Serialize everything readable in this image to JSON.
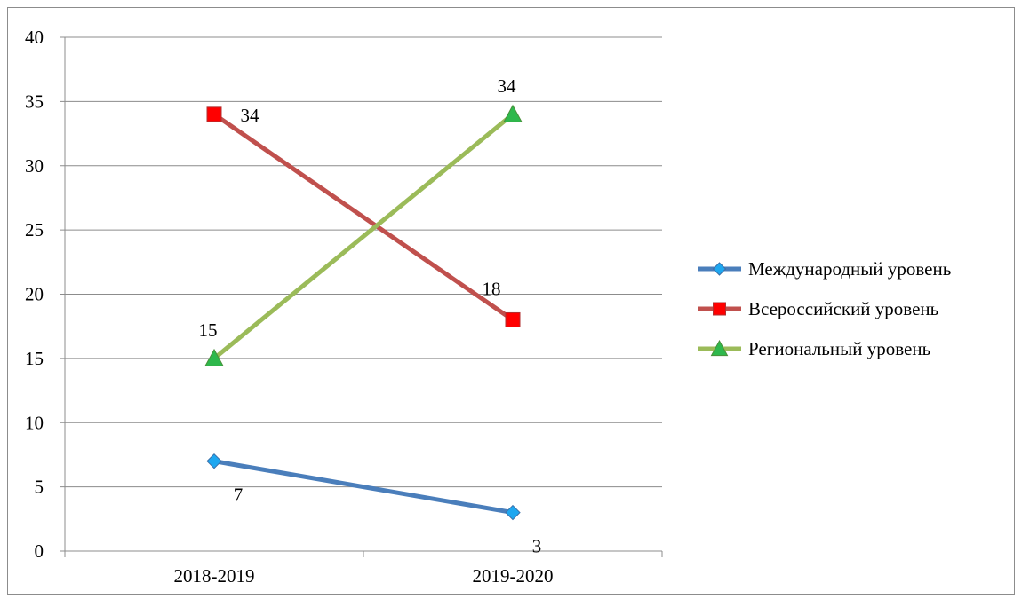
{
  "chart_data": {
    "type": "line",
    "categories": [
      "2018-2019",
      "2019-2020"
    ],
    "ylim": [
      0,
      40
    ],
    "yticks": [
      0,
      5,
      10,
      15,
      20,
      25,
      30,
      35,
      40
    ],
    "grid": true,
    "legend_position": "right",
    "series": [
      {
        "name": "Международный уровень",
        "values": [
          7,
          3
        ],
        "color": "#4a7ebb",
        "marker": "diamond",
        "marker_fill": "#1ea7f0",
        "label_position": "below"
      },
      {
        "name": "Всероссийский уровень",
        "values": [
          34,
          18
        ],
        "color": "#c0504d",
        "marker": "square",
        "marker_fill": "#ff0000",
        "label_position": "right-above"
      },
      {
        "name": "Региональный уровень",
        "values": [
          15,
          34
        ],
        "color": "#9bbb59",
        "marker": "triangle",
        "marker_fill": "#2eb84c",
        "label_position": "above"
      }
    ]
  }
}
